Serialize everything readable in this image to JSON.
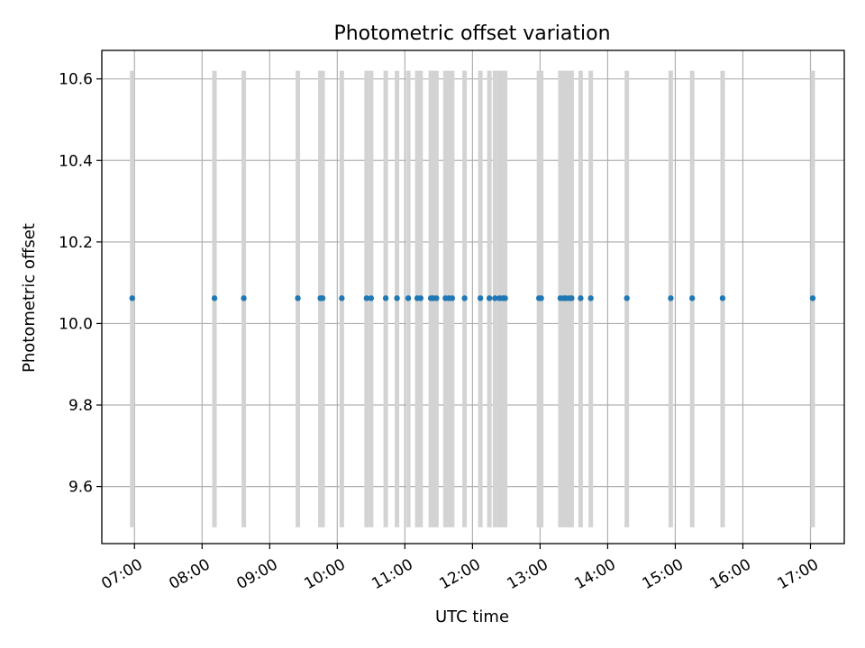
{
  "chart_data": {
    "type": "scatter",
    "title": "Photometric offset variation",
    "xlabel": "UTC time",
    "ylabel": "Photometric offset",
    "xlim": [
      "06:31",
      "17:30"
    ],
    "ylim": [
      9.46,
      10.67
    ],
    "grid": true,
    "x_ticks": [
      "07:00",
      "08:00",
      "09:00",
      "10:00",
      "11:00",
      "12:00",
      "13:00",
      "14:00",
      "15:00",
      "16:00",
      "17:00"
    ],
    "y_ticks": [
      9.6,
      9.8,
      10.0,
      10.2,
      10.4,
      10.6
    ],
    "y_tick_labels": [
      "9.6",
      "9.8",
      "10.0",
      "10.2",
      "10.4",
      "10.6"
    ],
    "error_bar_range": [
      9.5,
      10.62
    ],
    "point_color": "#1f77b4",
    "errorbar_color": "#d3d3d3",
    "series": [
      {
        "x": [
          "06:58",
          "08:11",
          "08:37",
          "09:25",
          "09:45",
          "09:47",
          "10:04",
          "10:26",
          "10:30",
          "10:43",
          "10:53",
          "11:03",
          "11:11",
          "11:14",
          "11:23",
          "11:25",
          "11:28",
          "11:36",
          "11:39",
          "11:42",
          "11:53",
          "12:07",
          "12:15",
          "12:20",
          "12:24",
          "12:27",
          "12:29",
          "12:59",
          "13:01",
          "13:18",
          "13:21",
          "13:23",
          "13:26",
          "13:28",
          "13:36",
          "13:45",
          "14:17",
          "14:56",
          "15:15",
          "15:42",
          "17:02"
        ],
        "y": [
          10.062,
          10.062,
          10.062,
          10.062,
          10.062,
          10.062,
          10.062,
          10.062,
          10.062,
          10.062,
          10.062,
          10.062,
          10.062,
          10.062,
          10.062,
          10.062,
          10.062,
          10.062,
          10.062,
          10.062,
          10.062,
          10.062,
          10.062,
          10.062,
          10.062,
          10.062,
          10.062,
          10.062,
          10.062,
          10.062,
          10.062,
          10.062,
          10.062,
          10.062,
          10.062,
          10.062,
          10.062,
          10.062,
          10.062,
          10.062,
          10.062
        ]
      }
    ]
  }
}
